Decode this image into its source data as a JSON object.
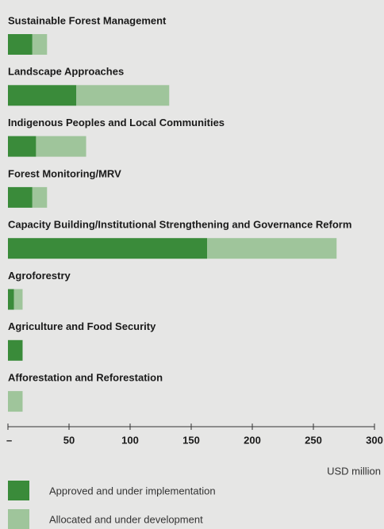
{
  "chart_data": {
    "type": "bar",
    "orientation": "horizontal",
    "stacked": true,
    "categories": [
      "Sustainable Forest Management",
      "Landscape Approaches",
      "Indigenous Peoples and Local Communities",
      "Forest Monitoring/MRV",
      "Capacity Building/Institutional Strengthening and Governance Reform",
      "Agroforestry",
      "Agriculture and Food Security",
      "Afforestation and Reforestation"
    ],
    "series": [
      {
        "name": "Approved and under implementation",
        "color": "#3a8b3a",
        "values": [
          20,
          56,
          23,
          20,
          163,
          5,
          12,
          0
        ]
      },
      {
        "name": "Allocated and under development",
        "color": "#9fc59b",
        "values": [
          12,
          76,
          41,
          12,
          106,
          7,
          0,
          12
        ]
      }
    ],
    "xlim": [
      0,
      300
    ],
    "xticks": [
      {
        "value": 0,
        "label": "–"
      },
      50,
      100,
      150,
      200,
      250,
      300
    ],
    "x_label": "USD million",
    "grid": false
  }
}
